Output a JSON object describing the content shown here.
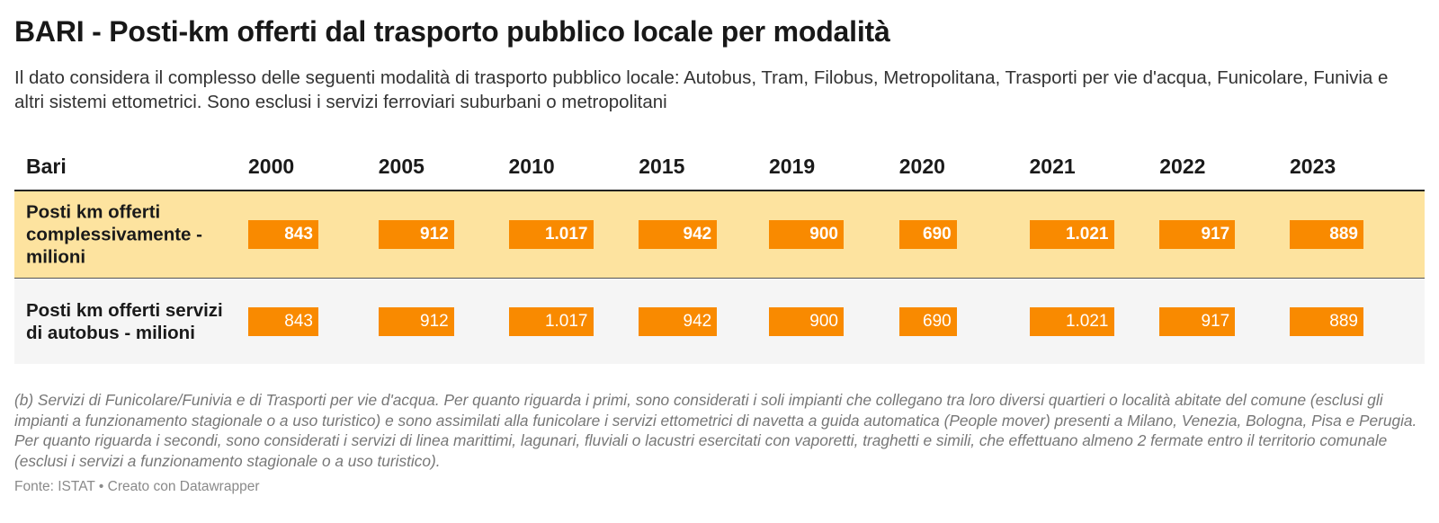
{
  "title": "BARI - Posti-km offerti dal trasporto pubblico locale per modalità",
  "subtitle": "Il dato considera il complesso delle seguenti modalità di trasporto pubblico locale: Autobus, Tram, Filobus, Metropolitana, Trasporti per vie d'acqua, Funicolare, Funivia e altri sistemi ettometrici. Sono esclusi i servizi ferroviari suburbani o metropolitani",
  "table": {
    "first_column_header": "Bari",
    "years": [
      "2000",
      "2005",
      "2010",
      "2015",
      "2019",
      "2020",
      "2021",
      "2022",
      "2023"
    ]
  },
  "colors": {
    "bar": "#f98a00",
    "highlight_row": "#fde39f",
    "second_row": "#f5f5f5"
  },
  "chart_data": {
    "type": "table",
    "title": "BARI - Posti-km offerti dal trasporto pubblico locale per modalità",
    "categories": [
      "2000",
      "2005",
      "2010",
      "2015",
      "2019",
      "2020",
      "2021",
      "2022",
      "2023"
    ],
    "bar_scale_max": 1021,
    "series": [
      {
        "name": "Posti km offerti complessivamente - milioni",
        "values": [
          843,
          912,
          1017,
          942,
          900,
          690,
          1021,
          917,
          889
        ],
        "labels": [
          "843",
          "912",
          "1.017",
          "942",
          "900",
          "690",
          "1.021",
          "917",
          "889"
        ]
      },
      {
        "name": "Posti km offerti servizi di autobus - milioni",
        "values": [
          843,
          912,
          1017,
          942,
          900,
          690,
          1021,
          917,
          889
        ],
        "labels": [
          "843",
          "912",
          "1.017",
          "942",
          "900",
          "690",
          "1.021",
          "917",
          "889"
        ]
      }
    ]
  },
  "notes": "(b) Servizi di Funicolare/Funivia e di Trasporti per vie d'acqua. Per quanto riguarda i primi, sono considerati i soli impianti che collegano tra loro diversi quartieri o località abitate del comune (esclusi gli impianti a funzionamento stagionale o a uso turistico) e sono assimilati alla funicolare i servizi ettometrici di navetta a guida automatica (People mover) presenti a Milano, Venezia, Bologna, Pisa e Perugia. Per quanto riguarda i secondi, sono considerati i servizi di linea marittimi, lagunari, fluviali o lacustri esercitati con vaporetti, traghetti e simili, che effettuano almeno 2 fermate entro il territorio comunale (esclusi i servizi a funzionamento stagionale o a uso turistico).",
  "source": "Fonte: ISTAT • Creato con Datawrapper"
}
